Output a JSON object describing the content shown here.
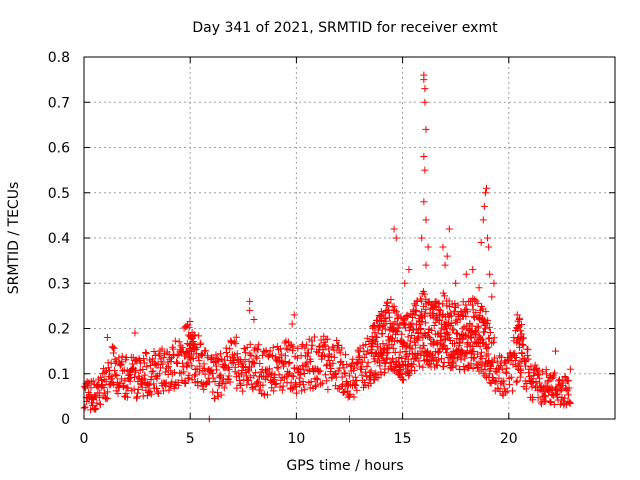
{
  "chart_data": {
    "type": "scatter",
    "title": "Day 341 of 2021, SRMTID for receiver exmt",
    "xlabel": "GPS time / hours",
    "ylabel": "SRMTID / TECUs",
    "xlim": [
      0,
      25
    ],
    "ylim": [
      0,
      0.8
    ],
    "x_ticks": [
      0,
      5,
      10,
      15,
      20
    ],
    "y_ticks": [
      0,
      0.1,
      0.2,
      0.3,
      0.4,
      0.5,
      0.6,
      0.7,
      0.8
    ],
    "x_tick_labels": [
      "0",
      "5",
      "10",
      "15",
      "20"
    ],
    "y_tick_labels": [
      "0",
      "0.1",
      "0.2",
      "0.3",
      "0.4",
      "0.5",
      "0.6",
      "0.7",
      "0.8"
    ],
    "grid": true,
    "marker": "+",
    "color": "#ff0000",
    "series": [
      {
        "name": "SRMTID",
        "trend": [
          [
            0.0,
            0.06
          ],
          [
            0.5,
            0.05
          ],
          [
            1.0,
            0.08
          ],
          [
            1.3,
            0.11
          ],
          [
            2.0,
            0.09
          ],
          [
            2.5,
            0.09
          ],
          [
            3.0,
            0.1
          ],
          [
            3.5,
            0.11
          ],
          [
            4.0,
            0.1
          ],
          [
            4.5,
            0.13
          ],
          [
            5.0,
            0.15
          ],
          [
            5.5,
            0.13
          ],
          [
            6.0,
            0.09
          ],
          [
            6.5,
            0.1
          ],
          [
            7.0,
            0.13
          ],
          [
            7.5,
            0.11
          ],
          [
            8.0,
            0.12
          ],
          [
            8.5,
            0.1
          ],
          [
            9.0,
            0.11
          ],
          [
            9.5,
            0.12
          ],
          [
            10.0,
            0.11
          ],
          [
            10.5,
            0.12
          ],
          [
            11.0,
            0.13
          ],
          [
            11.5,
            0.12
          ],
          [
            12.0,
            0.12
          ],
          [
            12.5,
            0.08
          ],
          [
            13.0,
            0.12
          ],
          [
            13.5,
            0.14
          ],
          [
            14.0,
            0.17
          ],
          [
            14.5,
            0.19
          ],
          [
            15.0,
            0.15
          ],
          [
            15.5,
            0.18
          ],
          [
            16.0,
            0.2
          ],
          [
            16.5,
            0.18
          ],
          [
            17.0,
            0.2
          ],
          [
            17.5,
            0.19
          ],
          [
            18.0,
            0.18
          ],
          [
            18.5,
            0.19
          ],
          [
            19.0,
            0.16
          ],
          [
            19.5,
            0.1
          ],
          [
            20.0,
            0.09
          ],
          [
            20.5,
            0.16
          ],
          [
            21.0,
            0.09
          ],
          [
            21.5,
            0.07
          ],
          [
            22.0,
            0.07
          ],
          [
            22.5,
            0.06
          ],
          [
            22.9,
            0.06
          ]
        ],
        "spikes": [
          [
            1.1,
            0.18
          ],
          [
            2.4,
            0.19
          ],
          [
            7.8,
            0.26
          ],
          [
            7.8,
            0.24
          ],
          [
            8.0,
            0.22
          ],
          [
            9.9,
            0.23
          ],
          [
            9.8,
            0.21
          ],
          [
            12.5,
            0.0
          ],
          [
            5.9,
            0.0
          ],
          [
            14.6,
            0.42
          ],
          [
            14.7,
            0.4
          ],
          [
            15.1,
            0.3
          ],
          [
            15.3,
            0.33
          ],
          [
            15.9,
            0.4
          ],
          [
            16.0,
            0.76
          ],
          [
            16.0,
            0.75
          ],
          [
            16.05,
            0.73
          ],
          [
            16.05,
            0.7
          ],
          [
            16.1,
            0.64
          ],
          [
            16.0,
            0.58
          ],
          [
            16.05,
            0.55
          ],
          [
            16.0,
            0.48
          ],
          [
            16.1,
            0.44
          ],
          [
            16.2,
            0.38
          ],
          [
            16.1,
            0.34
          ],
          [
            16.9,
            0.38
          ],
          [
            17.0,
            0.34
          ],
          [
            17.1,
            0.36
          ],
          [
            17.2,
            0.42
          ],
          [
            17.5,
            0.3
          ],
          [
            18.0,
            0.32
          ],
          [
            18.3,
            0.33
          ],
          [
            18.6,
            0.29
          ],
          [
            18.7,
            0.39
          ],
          [
            18.8,
            0.44
          ],
          [
            18.85,
            0.47
          ],
          [
            18.9,
            0.5
          ],
          [
            18.95,
            0.51
          ],
          [
            19.0,
            0.4
          ],
          [
            19.05,
            0.38
          ],
          [
            19.1,
            0.32
          ],
          [
            19.2,
            0.27
          ],
          [
            19.3,
            0.3
          ],
          [
            20.4,
            0.23
          ],
          [
            20.5,
            0.22
          ],
          [
            22.2,
            0.15
          ],
          [
            22.9,
            0.11
          ]
        ]
      }
    ]
  }
}
